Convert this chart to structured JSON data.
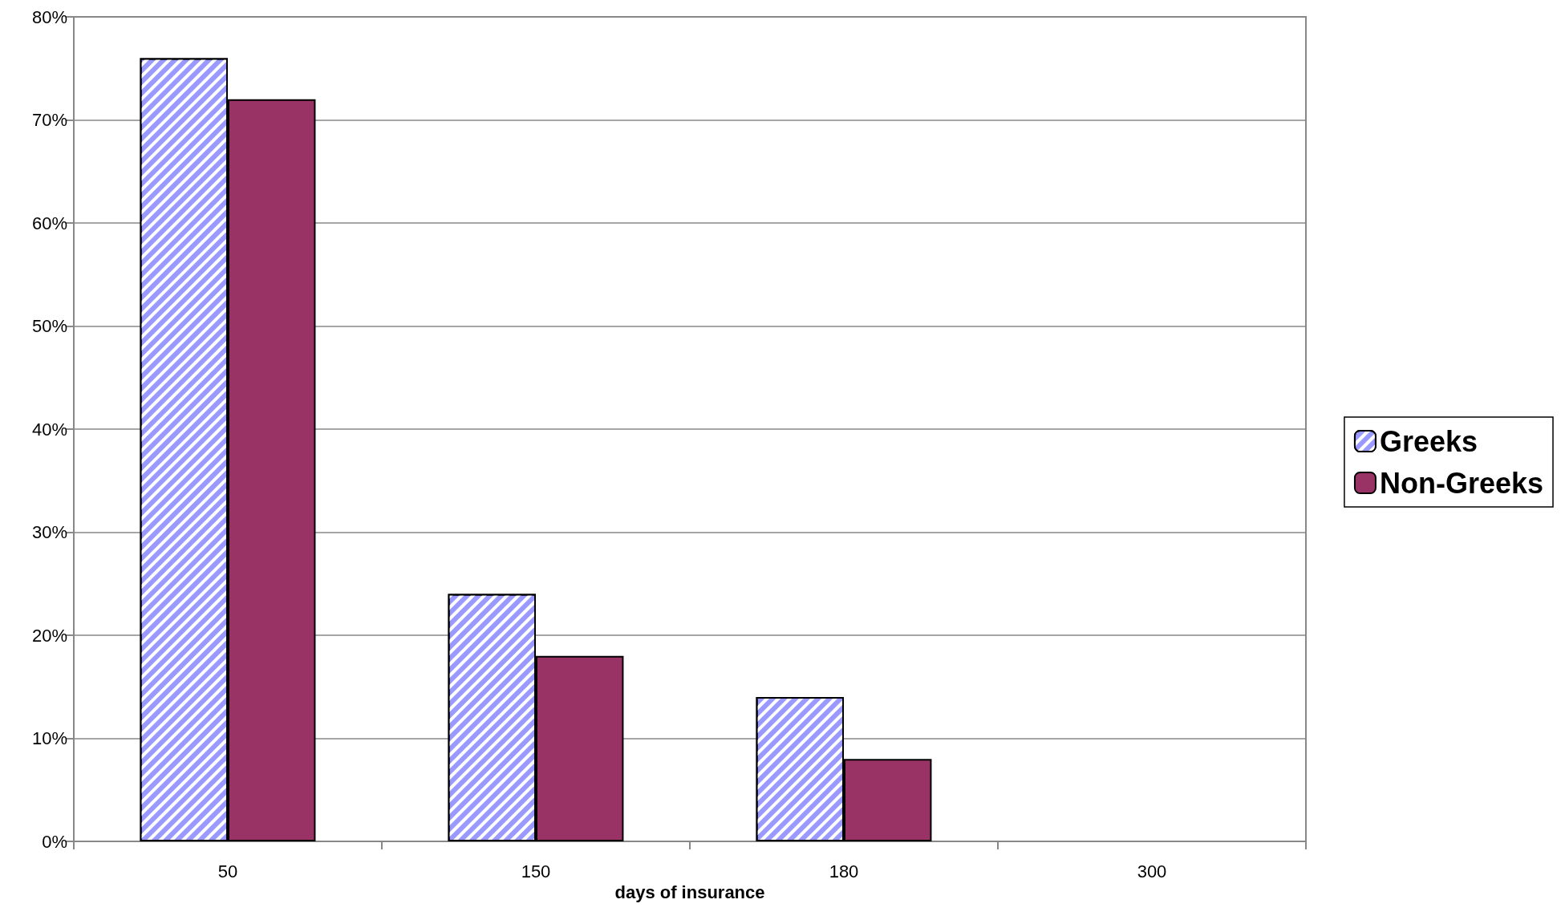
{
  "chart_data": {
    "type": "bar",
    "xlabel": "days of insurance",
    "categories": [
      "50",
      "150",
      "180",
      "300"
    ],
    "series": [
      {
        "name": "Greeks",
        "color": "#9999ff",
        "values": [
          76,
          24,
          14,
          null
        ]
      },
      {
        "name": "Non-Greeks",
        "color": "#993366",
        "values": [
          72,
          18,
          8,
          null
        ]
      }
    ],
    "ylim": [
      0,
      80
    ],
    "yticks": [
      {
        "value": 0,
        "label": "0%"
      },
      {
        "value": 10,
        "label": "10%"
      },
      {
        "value": 20,
        "label": "20%"
      },
      {
        "value": 30,
        "label": "30%"
      },
      {
        "value": 40,
        "label": "40%"
      },
      {
        "value": 50,
        "label": "50%"
      },
      {
        "value": 60,
        "label": "60%"
      },
      {
        "value": 70,
        "label": "70%"
      },
      {
        "value": 80,
        "label": "80%"
      }
    ],
    "grid": "y",
    "legend": "right"
  }
}
